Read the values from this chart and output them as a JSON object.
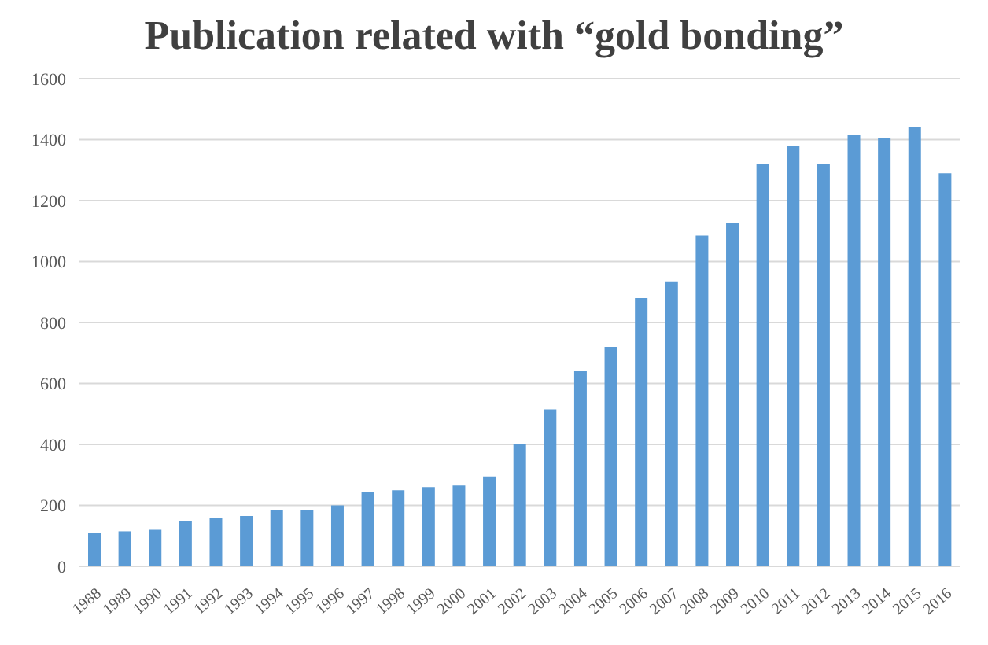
{
  "chart_data": {
    "type": "bar",
    "title": "Publication related with “gold bonding”",
    "categories": [
      "1988",
      "1989",
      "1990",
      "1991",
      "1992",
      "1993",
      "1994",
      "1995",
      "1996",
      "1997",
      "1998",
      "1999",
      "2000",
      "2001",
      "2002",
      "2003",
      "2004",
      "2005",
      "2006",
      "2007",
      "2008",
      "2009",
      "2010",
      "2011",
      "2012",
      "2013",
      "2014",
      "2015",
      "2016"
    ],
    "values": [
      110,
      115,
      120,
      150,
      160,
      165,
      185,
      185,
      200,
      245,
      250,
      260,
      265,
      295,
      400,
      515,
      640,
      720,
      880,
      935,
      1085,
      1125,
      1320,
      1380,
      1320,
      1415,
      1405,
      1440,
      1290
    ],
    "color": "#5b9bd5",
    "ylim": [
      0,
      1600
    ],
    "yticks": [
      0,
      200,
      400,
      600,
      800,
      1000,
      1200,
      1400,
      1600
    ],
    "grid": "y"
  }
}
